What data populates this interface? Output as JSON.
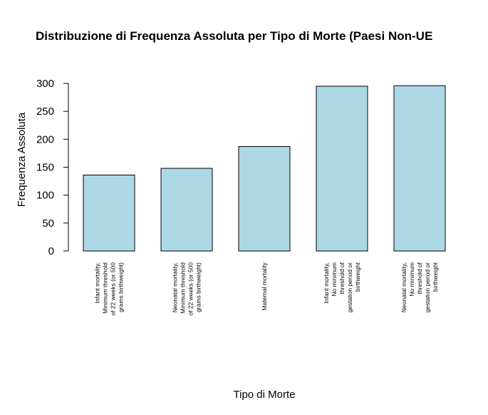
{
  "chart_data": {
    "type": "bar",
    "title": "Distribuzione di Frequenza Assoluta per Tipo di Morte (Paesi Non-UE",
    "xlabel": "Tipo di Morte",
    "ylabel": "Frequenza Assoluta",
    "ylim": [
      0,
      300
    ],
    "yticks": [
      0,
      50,
      100,
      150,
      200,
      250,
      300
    ],
    "bar_color": "#ADD8E6",
    "grid": false,
    "categories": [
      [
        "Infant mortality,",
        "Minimum threshold",
        "of 22 weeks (or 500",
        "grams birthweight)"
      ],
      [
        "Neonatal mortality,",
        "Minimum threshold",
        "of 22 weeks (or 500",
        "grams birthweight)"
      ],
      [
        "Maternal mortality"
      ],
      [
        "Infant mortality,",
        "No minimum",
        "threshold of",
        "gestation period or",
        "birthweight"
      ],
      [
        "Neonatal mortality,",
        "No minimum",
        "threshold of",
        "gestation period or",
        "birthweight"
      ]
    ],
    "values": [
      136,
      148,
      187,
      295,
      296
    ]
  }
}
